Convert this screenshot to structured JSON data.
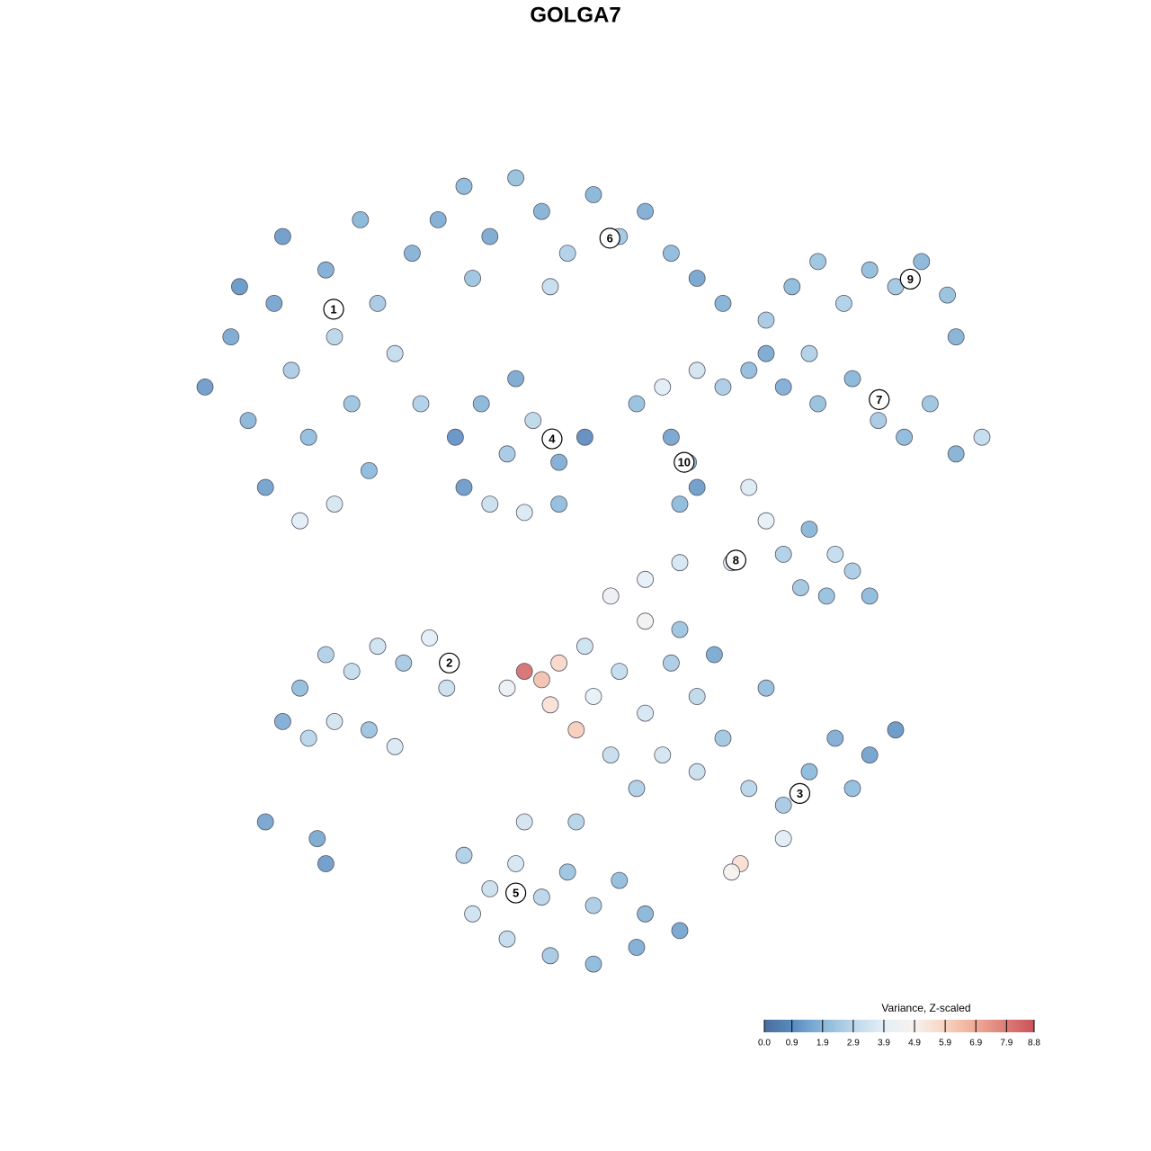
{
  "chart_data": {
    "type": "scatter",
    "title": "GOLGA7",
    "xlim": [
      0,
      100
    ],
    "ylim": [
      0,
      100
    ],
    "colorbar": {
      "title": "Variance, Z-scaled",
      "clim": [
        0,
        8.8
      ],
      "colors": [
        "#4a6e9c",
        "#5b8dc2",
        "#8bb9da",
        "#bdd8ea",
        "#e4eff6",
        "#f7f2ef",
        "#f8d4c3",
        "#efad98",
        "#de7f78",
        "#c9525a"
      ],
      "ticks": [
        {
          "value": 0,
          "label": "0.0"
        },
        0.9,
        1.9,
        2.9,
        3.9,
        4.9,
        5.9,
        6.9,
        7.9,
        8.8
      ]
    },
    "points": {
      "x": [
        5,
        8,
        10,
        13,
        15,
        17,
        19,
        20,
        22,
        24,
        25,
        27,
        29,
        30,
        12,
        16,
        20,
        14,
        23,
        9,
        32,
        35,
        38,
        41,
        44,
        47,
        50,
        53,
        56,
        59,
        62,
        65,
        36,
        45,
        34,
        37,
        40,
        43,
        46,
        38,
        42,
        46,
        49,
        35,
        41,
        59,
        61,
        62,
        60,
        73,
        76,
        79,
        82,
        85,
        88,
        91,
        92,
        70,
        68,
        72,
        76,
        80,
        83,
        86,
        89,
        92,
        95,
        70,
        75,
        58,
        62,
        65,
        55,
        68,
        70,
        72,
        74,
        77,
        80,
        82,
        75,
        78,
        66,
        60,
        56,
        52,
        16,
        19,
        22,
        25,
        28,
        31,
        17,
        20,
        24,
        27,
        14,
        33,
        12,
        18,
        19,
        40,
        42,
        44,
        46,
        45,
        48,
        50,
        53,
        56,
        59,
        62,
        65,
        58,
        52,
        55,
        62,
        68,
        72,
        75,
        78,
        82,
        85,
        80,
        72,
        67,
        66,
        60,
        56,
        49,
        64,
        70,
        35,
        38,
        41,
        44,
        47,
        50,
        53,
        56,
        40,
        45,
        50,
        55,
        42,
        48,
        36,
        60
      ],
      "y": [
        72,
        78,
        68,
        82,
        74,
        66,
        86,
        78,
        70,
        62,
        82,
        76,
        88,
        70,
        60,
        56,
        58,
        90,
        92,
        84,
        92,
        96,
        90,
        97,
        93,
        88,
        95,
        90,
        93,
        88,
        85,
        82,
        85,
        84,
        66,
        70,
        64,
        68,
        63,
        58,
        57,
        58,
        66,
        60,
        73,
        66,
        63,
        60,
        58,
        84,
        87,
        82,
        86,
        84,
        87,
        83,
        78,
        80,
        74,
        72,
        70,
        73,
        68,
        66,
        70,
        64,
        66,
        76,
        76,
        72,
        74,
        72,
        70,
        60,
        56,
        52,
        48,
        47,
        50,
        47,
        55,
        52,
        51,
        51,
        49,
        47,
        36,
        40,
        38,
        41,
        39,
        42,
        30,
        32,
        31,
        29,
        32,
        36,
        20,
        18,
        15,
        36,
        38,
        37,
        39,
        34,
        31,
        35,
        38,
        33,
        39,
        35,
        30,
        28,
        28,
        24,
        26,
        24,
        22,
        26,
        30,
        28,
        31,
        24,
        18,
        15,
        14,
        43,
        44,
        41,
        40,
        36,
        16,
        12,
        15,
        11,
        14,
        10,
        13,
        9,
        6,
        4,
        3,
        5,
        20,
        20,
        9,
        7
      ],
      "values": [
        1.2,
        1.5,
        1.8,
        1.4,
        2.5,
        2.0,
        1.6,
        2.8,
        2.2,
        1.9,
        2.4,
        3.0,
        1.7,
        2.6,
        1.3,
        3.8,
        3.5,
        1.2,
        1.8,
        1.1,
        1.6,
        1.9,
        1.5,
        2.1,
        1.7,
        2.6,
        1.8,
        2.3,
        1.6,
        1.9,
        1.4,
        1.7,
        2.2,
        3.1,
        1.0,
        1.8,
        2.4,
        2.9,
        1.6,
        3.2,
        3.6,
        2.0,
        0.8,
        1.2,
        1.5,
        1.4,
        1.7,
        1.2,
        1.9,
        1.9,
        2.2,
        2.6,
        2.0,
        2.3,
        1.8,
        2.1,
        1.7,
        2.4,
        2.0,
        1.6,
        2.1,
        1.8,
        2.4,
        1.9,
        2.2,
        1.7,
        3.0,
        1.5,
        2.6,
        3.8,
        3.4,
        2.5,
        2.1,
        3.7,
        4.0,
        2.6,
        2.3,
        2.1,
        2.5,
        1.9,
        1.8,
        3.0,
        3.8,
        3.5,
        3.9,
        4.3,
        2.0,
        2.6,
        3.0,
        3.3,
        2.4,
        3.8,
        2.8,
        3.4,
        2.2,
        3.6,
        1.6,
        3.2,
        1.4,
        1.5,
        1.2,
        4.2,
        8.3,
        6.4,
        5.8,
        5.5,
        6.1,
        3.9,
        3.0,
        3.5,
        2.5,
        2.9,
        2.3,
        3.4,
        3.1,
        2.6,
        3.2,
        2.8,
        2.4,
        1.9,
        1.6,
        1.3,
        1.1,
        2.0,
        3.8,
        5.6,
        4.8,
        2.2,
        4.6,
        3.3,
        1.5,
        2.0,
        2.6,
        3.2,
        3.5,
        2.8,
        2.2,
        2.5,
        2.0,
        1.8,
        3.0,
        2.4,
        1.9,
        1.6,
        3.4,
        2.7,
        3.3,
        1.4
      ]
    },
    "clusters": {
      "labels": [
        "1",
        "6",
        "4",
        "10",
        "9",
        "7",
        "8",
        "2",
        "3",
        "5"
      ],
      "x": [
        19.9,
        51.9,
        45.2,
        60.5,
        86.7,
        83.1,
        66.5,
        33.3,
        73.9,
        41.0
      ],
      "y": [
        81.3,
        89.8,
        65.8,
        63.0,
        84.9,
        70.5,
        51.3,
        39.0,
        23.4,
        11.5
      ]
    }
  }
}
